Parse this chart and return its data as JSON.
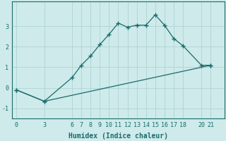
{
  "xlabel": "Humidex (Indice chaleur)",
  "bg_color": "#ceeaea",
  "grid_color": "#aed4d4",
  "line_color": "#1a6b6b",
  "x_ticks": [
    0,
    3,
    6,
    7,
    8,
    9,
    10,
    11,
    12,
    13,
    14,
    15,
    16,
    17,
    18,
    20,
    21
  ],
  "curve1_x": [
    0,
    3,
    6,
    7,
    8,
    9,
    10,
    11,
    12,
    13,
    14,
    15,
    16,
    17,
    18,
    20,
    21
  ],
  "curve1_y": [
    -0.1,
    -0.65,
    0.5,
    1.1,
    1.55,
    2.1,
    2.6,
    3.15,
    2.95,
    3.05,
    3.05,
    3.55,
    3.05,
    2.4,
    2.05,
    1.1,
    1.1
  ],
  "curve2_x": [
    0,
    3,
    21
  ],
  "curve2_y": [
    -0.1,
    -0.65,
    1.1
  ],
  "ylim": [
    -1.5,
    4.2
  ],
  "xlim": [
    -0.5,
    22.5
  ],
  "yticks": [
    -1,
    0,
    1,
    2,
    3
  ],
  "marker": "+",
  "markersize": 4,
  "markeredgewidth": 1.0,
  "linewidth": 0.9,
  "tick_fontsize": 6,
  "xlabel_fontsize": 7
}
